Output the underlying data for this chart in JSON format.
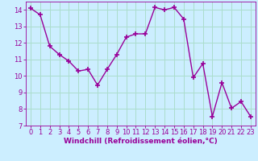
{
  "x": [
    0,
    1,
    2,
    3,
    4,
    5,
    6,
    7,
    8,
    9,
    10,
    11,
    12,
    13,
    14,
    15,
    16,
    17,
    18,
    19,
    20,
    21,
    22,
    23
  ],
  "y": [
    14.1,
    13.7,
    11.8,
    11.3,
    10.9,
    10.3,
    10.4,
    9.45,
    10.4,
    11.3,
    12.35,
    12.55,
    12.55,
    14.15,
    14.0,
    14.15,
    13.45,
    9.9,
    10.75,
    7.55,
    9.6,
    8.05,
    8.45,
    7.55
  ],
  "line_color": "#990099",
  "marker": "+",
  "marker_size": 4,
  "marker_lw": 1.2,
  "bg_color": "#cceeff",
  "grid_color": "#aaddcc",
  "xlabel": "Windchill (Refroidissement éolien,°C)",
  "ylim": [
    7,
    14.5
  ],
  "xlim": [
    -0.5,
    23.5
  ],
  "yticks": [
    7,
    8,
    9,
    10,
    11,
    12,
    13,
    14
  ],
  "xticks": [
    0,
    1,
    2,
    3,
    4,
    5,
    6,
    7,
    8,
    9,
    10,
    11,
    12,
    13,
    14,
    15,
    16,
    17,
    18,
    19,
    20,
    21,
    22,
    23
  ],
  "tick_color": "#990099",
  "label_color": "#990099",
  "axis_color": "#990099",
  "xlabel_fontsize": 6.5,
  "tick_fontsize": 6,
  "linewidth": 1.0
}
